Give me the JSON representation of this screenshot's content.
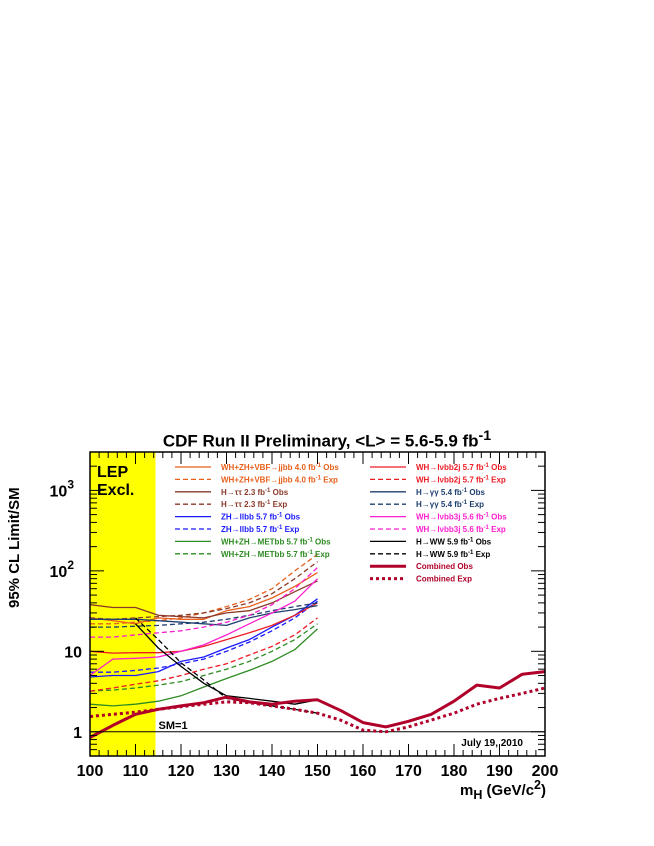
{
  "chart_data": {
    "type": "line",
    "title": "CDF Run II Preliminary, <L> = 5.6-5.9 fb",
    "title_sup": "-1",
    "xlabel": "m",
    "xlabel_sub": "H",
    "xlabel_unit": " (GeV/c",
    "xlabel_unit_sup": "2",
    "xlabel_end": ")",
    "ylabel": "95% CL Limit/SM",
    "xlim": [
      100,
      200
    ],
    "ylim": [
      0.5,
      3000
    ],
    "yscale": "log",
    "x_ticks": [
      "100",
      "110",
      "120",
      "130",
      "140",
      "150",
      "160",
      "170",
      "180",
      "190",
      "200"
    ],
    "y_ticks": [
      {
        "value": 1,
        "label": "1"
      },
      {
        "value": 10,
        "label": "10"
      },
      {
        "value": 100,
        "label": "10",
        "sup": "2"
      },
      {
        "value": 1000,
        "label": "10",
        "sup": "3"
      }
    ],
    "lep_band": {
      "xmin": 100,
      "xmax": 114.4,
      "label_line1": "LEP",
      "label_line2": "Excl.",
      "color": "#ffff00"
    },
    "sm_line": {
      "y": 1,
      "label": "SM=1"
    },
    "date_label": "July 19, 2010",
    "legend_placement": "top",
    "series": [
      {
        "name": "WH+ZH+VBF→jjbb 4.0 fb",
        "sup": "-1",
        "suffix": " Obs",
        "color": "#e8601c",
        "dash": false,
        "width": 1.3,
        "x": [
          100,
          105,
          110,
          115,
          120,
          125,
          130,
          135,
          140,
          145,
          150
        ],
        "y": [
          26,
          24,
          22,
          26,
          25,
          25,
          32,
          36,
          46,
          64,
          95
        ]
      },
      {
        "name": "WH+ZH+VBF→jjbb 4.0 fb",
        "sup": "-1",
        "suffix": " Exp",
        "color": "#e8601c",
        "dash": true,
        "width": 1.3,
        "x": [
          100,
          105,
          110,
          115,
          120,
          125,
          130,
          135,
          140,
          145,
          150
        ],
        "y": [
          22,
          22,
          23,
          24,
          26,
          30,
          36,
          44,
          60,
          100,
          160
        ]
      },
      {
        "name": "H→ττ 2.3 fb",
        "sup": "-1",
        "suffix": " Obs",
        "color": "#8b3a2a",
        "dash": false,
        "width": 1.3,
        "x": [
          100,
          105,
          110,
          115,
          120,
          125,
          130,
          135,
          140,
          145,
          150
        ],
        "y": [
          38,
          35,
          35,
          28,
          27,
          26,
          30,
          32,
          40,
          55,
          75
        ]
      },
      {
        "name": "H→ττ 2.3 fb",
        "sup": "-1",
        "suffix": " Exp",
        "color": "#8b3a2a",
        "dash": true,
        "width": 1.3,
        "x": [
          100,
          105,
          110,
          115,
          120,
          125,
          130,
          135,
          140,
          145,
          150
        ],
        "y": [
          26,
          25,
          26,
          27,
          28,
          30,
          34,
          40,
          52,
          80,
          130
        ]
      },
      {
        "name": "ZH→llbb 5.7 fb",
        "sup": "-1",
        "suffix": " Obs",
        "color": "#1a1aff",
        "dash": false,
        "width": 1.3,
        "x": [
          100,
          105,
          110,
          115,
          120,
          125,
          130,
          135,
          140,
          145,
          150
        ],
        "y": [
          4.8,
          5,
          5,
          5.6,
          7.5,
          8.5,
          11,
          14,
          20,
          28,
          45
        ]
      },
      {
        "name": "ZH→llbb 5.7 fb",
        "sup": "-1",
        "suffix": " Exp",
        "color": "#1a1aff",
        "dash": true,
        "width": 1.3,
        "x": [
          100,
          105,
          110,
          115,
          120,
          125,
          130,
          135,
          140,
          145,
          150
        ],
        "y": [
          5.5,
          5.5,
          5.8,
          6.2,
          7,
          8,
          10,
          13,
          18,
          26,
          42
        ]
      },
      {
        "name": "WH+ZH→METbb 5.7 fb",
        "sup": "-1",
        "suffix": " Obs",
        "color": "#2e8b22",
        "dash": false,
        "width": 1.3,
        "x": [
          100,
          105,
          110,
          115,
          120,
          125,
          130,
          135,
          140,
          145,
          150
        ],
        "y": [
          2.2,
          2.1,
          2.2,
          2.4,
          2.8,
          3.6,
          4.6,
          5.8,
          7.5,
          10.5,
          19
        ]
      },
      {
        "name": "WH+ZH→METbb 5.7 fb",
        "sup": "-1",
        "suffix": " Exp",
        "color": "#2e8b22",
        "dash": true,
        "width": 1.3,
        "x": [
          100,
          105,
          110,
          115,
          120,
          125,
          130,
          135,
          140,
          145,
          150
        ],
        "y": [
          3.2,
          3.3,
          3.5,
          3.8,
          4.2,
          5,
          6,
          7.5,
          10,
          14,
          22
        ]
      },
      {
        "name": "WH→lνbb2j 5.7 fb",
        "sup": "-1",
        "suffix": " Obs",
        "color": "#ee1c25",
        "dash": false,
        "width": 1.3,
        "x": [
          100,
          105,
          110,
          115,
          120,
          125,
          130,
          135,
          140,
          145,
          150
        ],
        "y": [
          10,
          9.5,
          9.6,
          9.6,
          10,
          11.5,
          14,
          17,
          21,
          28,
          40
        ]
      },
      {
        "name": "WH→lνbb2j 5.7 fb",
        "sup": "-1",
        "suffix": " Exp",
        "color": "#ee1c25",
        "dash": true,
        "width": 1.3,
        "x": [
          100,
          105,
          110,
          115,
          120,
          125,
          130,
          135,
          140,
          145,
          150
        ],
        "y": [
          3.2,
          3.5,
          3.9,
          4.3,
          5,
          6,
          7,
          9,
          11.5,
          16,
          26
        ]
      },
      {
        "name": "H→γγ 5.4 fb",
        "sup": "-1",
        "suffix": " Obs",
        "color": "#1f3f6f",
        "dash": false,
        "width": 1.3,
        "x": [
          100,
          105,
          110,
          115,
          120,
          125,
          130,
          135,
          140,
          145,
          150
        ],
        "y": [
          25,
          25,
          25,
          24,
          23,
          22,
          21,
          26,
          30,
          33,
          37
        ]
      },
      {
        "name": "H→γγ 5.4 fb",
        "sup": "-1",
        "suffix": " Exp",
        "color": "#1f3f6f",
        "dash": true,
        "width": 1.3,
        "x": [
          100,
          105,
          110,
          115,
          120,
          125,
          130,
          135,
          140,
          145,
          150
        ],
        "y": [
          20,
          20,
          20.5,
          21,
          22,
          23,
          25,
          28,
          32,
          36,
          40
        ]
      },
      {
        "name": "WH→lνbb3j 5.6 fb",
        "sup": "-1",
        "suffix": " Obs",
        "color": "#ff1fcf",
        "dash": false,
        "width": 1.3,
        "x": [
          100,
          105,
          110,
          115,
          120,
          125,
          130,
          135,
          140,
          145,
          150
        ],
        "y": [
          5,
          8,
          8.2,
          8.5,
          10,
          12,
          16,
          22,
          30,
          42,
          80
        ]
      },
      {
        "name": "WH→lνbb3j 5.6 fb",
        "sup": "-1",
        "suffix": " Exp",
        "color": "#ff1fcf",
        "dash": true,
        "width": 1.3,
        "x": [
          100,
          105,
          110,
          115,
          120,
          125,
          130,
          135,
          140,
          145,
          150
        ],
        "y": [
          15,
          15,
          16,
          17,
          18,
          20,
          23,
          28,
          38,
          60,
          110
        ]
      },
      {
        "name": "H→WW 5.9 fb",
        "sup": "-1",
        "suffix": " Obs",
        "color": "#000000",
        "dash": false,
        "width": 1.3,
        "x": [
          110,
          115,
          120,
          125,
          130,
          135,
          140,
          145,
          150
        ],
        "y": [
          22,
          11,
          6.5,
          4,
          2.8,
          2.6,
          2.4,
          2.2,
          2.5
        ]
      },
      {
        "name": "H→WW 5.9 fb",
        "sup": "-1",
        "suffix": " Exp",
        "color": "#000000",
        "dash": true,
        "width": 1.3,
        "x": [
          110,
          115,
          120,
          125,
          130,
          135,
          140,
          145,
          150
        ],
        "y": [
          26,
          14,
          7.2,
          4.4,
          2.6,
          2.3,
          2.1,
          1.9,
          1.7
        ]
      },
      {
        "name": "Combined Obs",
        "sup": "",
        "suffix": "",
        "color": "#b0002a",
        "dash": false,
        "width": 3,
        "x": [
          100,
          105,
          110,
          115,
          120,
          125,
          130,
          135,
          140,
          145,
          150,
          155,
          160,
          165,
          170,
          175,
          180,
          185,
          190,
          195,
          200
        ],
        "y": [
          0.85,
          1.2,
          1.65,
          1.9,
          2.1,
          2.3,
          2.7,
          2.35,
          2.2,
          2.4,
          2.5,
          1.85,
          1.3,
          1.15,
          1.35,
          1.65,
          2.4,
          3.8,
          3.5,
          5.2,
          5.6
        ]
      },
      {
        "name": "Combined Exp",
        "sup": "",
        "suffix": "",
        "color": "#b0002a",
        "dash": true,
        "width": 3,
        "x": [
          100,
          105,
          110,
          115,
          120,
          125,
          130,
          135,
          140,
          145,
          150,
          155,
          160,
          165,
          170,
          175,
          180,
          185,
          190,
          195,
          200
        ],
        "y": [
          1.55,
          1.65,
          1.75,
          1.9,
          2.05,
          2.2,
          2.35,
          2.3,
          2.1,
          1.9,
          1.7,
          1.4,
          1.05,
          1.0,
          1.15,
          1.4,
          1.7,
          2.2,
          2.6,
          3.0,
          3.5
        ]
      }
    ]
  }
}
